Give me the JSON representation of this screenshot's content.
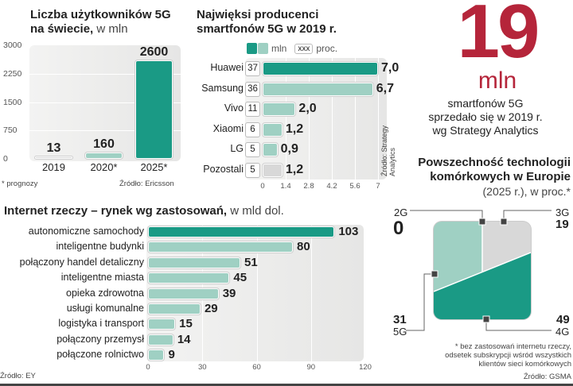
{
  "colors": {
    "accent": "#1a9a85",
    "light": "#9fd0c3",
    "gray": "#d8d8d8",
    "red": "#b5253a"
  },
  "chart_data": [
    {
      "type": "bar",
      "title": "Liczba użytkowników 5G",
      "title2": "na świecie,",
      "unit": " w mln",
      "categories": [
        "2019",
        "2020*",
        "2025*"
      ],
      "values": [
        13,
        160,
        2600
      ],
      "value_labels": [
        "13",
        "160",
        "2600"
      ],
      "yticks": [
        "3000",
        "2250",
        "1500",
        "750",
        "0"
      ],
      "ylim": [
        0,
        3000
      ],
      "note": "* prognozy",
      "source": "Źródło: Ericsson"
    },
    {
      "type": "bar",
      "orientation": "horizontal",
      "title": "Najwięksi producenci",
      "title2": "smartfonów 5G w 2019 r.",
      "legend": {
        "mln": "mln",
        "xxx": "xxx",
        "proc": "proc."
      },
      "categories": [
        "Huawei",
        "Samsung",
        "Vivo",
        "Xiaomi",
        "LG",
        "Pozostali"
      ],
      "values": [
        7.0,
        6.7,
        2.0,
        1.2,
        0.9,
        1.2
      ],
      "value_labels": [
        "7,0",
        "6,7",
        "2,0",
        "1,2",
        "0,9",
        "1,2"
      ],
      "percent": [
        "37",
        "36",
        "11",
        "6",
        "5",
        "5"
      ],
      "xticks": [
        "0",
        "1.4",
        "2.8",
        "4.2",
        "5.6",
        "7"
      ],
      "xlim": [
        0,
        7
      ],
      "source": "Źródło: Strategy Analytics"
    },
    {
      "type": "bar",
      "orientation": "horizontal",
      "title": "Internet rzeczy – rynek wg zastosowań,",
      "unit": " w mld dol.",
      "categories": [
        "autonomiczne samochody",
        "inteligentne budynki",
        "połączony handel detaliczny",
        "inteligentne miasta",
        "opieka zdrowotna",
        "usługi komunalne",
        "logistyka i transport",
        "połączony przemysł",
        "połączone rolnictwo"
      ],
      "values": [
        103,
        80,
        51,
        45,
        39,
        29,
        15,
        14,
        9
      ],
      "value_labels": [
        "103",
        "80",
        "51",
        "45",
        "39",
        "29",
        "15",
        "14",
        "9"
      ],
      "xticks": [
        "0",
        "30",
        "60",
        "90",
        "120"
      ],
      "xlim": [
        0,
        120
      ],
      "source": "Źródło: EY"
    },
    {
      "type": "area",
      "title": "Powszechność technologii",
      "title2": "komórkowych w Europie",
      "subtitle": "(2025 r.), w proc.*",
      "categories": [
        "2G",
        "3G",
        "5G",
        "4G"
      ],
      "values": [
        0,
        19,
        31,
        49
      ],
      "value_labels": [
        "0",
        "19",
        "31",
        "49"
      ],
      "footnote": [
        "* bez zastosowań internetu rzeczy,",
        "odsetek subskrypcji wśród wszystkich",
        "klientów sieci komórkowych"
      ],
      "source": "Źródło: GSMA"
    }
  ],
  "highlight": {
    "number": "19",
    "unit": "mln",
    "lines": [
      "smartfonów 5G",
      "sprzedało się w 2019 r.",
      "wg Strategy Analytics"
    ]
  }
}
